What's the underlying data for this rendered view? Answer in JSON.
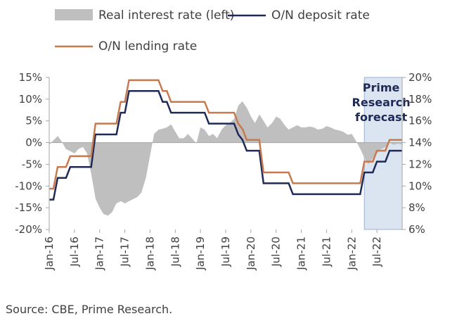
{
  "chart_data": {
    "type": "line",
    "legend": {
      "real_rate": "Real interest rate (left)",
      "deposit": "O/N deposit rate",
      "lending": "O/N lending rate"
    },
    "colors": {
      "real_rate": "#bfbfbf",
      "deposit": "#1f2a56",
      "lending": "#c87a4f",
      "forecast_band": "#dbe4f1",
      "forecast_edge": "#9db1d3",
      "axis": "#a6a6a6"
    },
    "y_left": {
      "min": -20,
      "max": 15,
      "ticks": [
        15,
        10,
        5,
        0,
        -5,
        -10,
        -15,
        -20
      ],
      "format": "percent"
    },
    "y_right": {
      "min": 6,
      "max": 20,
      "ticks": [
        20,
        18,
        16,
        14,
        12,
        10,
        8,
        6
      ],
      "format": "percent"
    },
    "x_range": [
      2016.0,
      2023.0
    ],
    "x_ticks": [
      {
        "label": "Jan-16",
        "t": 2016.0
      },
      {
        "label": "Jul-16",
        "t": 2016.5
      },
      {
        "label": "Jan-17",
        "t": 2017.0
      },
      {
        "label": "Jul-17",
        "t": 2017.5
      },
      {
        "label": "Jan-18",
        "t": 2018.0
      },
      {
        "label": "Jul-18",
        "t": 2018.5
      },
      {
        "label": "Jan-19",
        "t": 2019.0
      },
      {
        "label": "Jul-19",
        "t": 2019.5
      },
      {
        "label": "Jan-20",
        "t": 2020.0
      },
      {
        "label": "Jul-20",
        "t": 2020.5
      },
      {
        "label": "Jan-21",
        "t": 2021.0
      },
      {
        "label": "Jul-21",
        "t": 2021.5
      },
      {
        "label": "Jan-22",
        "t": 2022.0
      },
      {
        "label": "Jul-22",
        "t": 2022.5
      }
    ],
    "forecast": {
      "label_lines": [
        "Prime",
        "Research",
        "forecast"
      ],
      "start": 2022.25,
      "end": 2023.0
    },
    "series": [
      {
        "name": "O/N deposit rate",
        "axis": "right",
        "style": "step",
        "points": [
          [
            2016.0,
            8.75
          ],
          [
            2016.083,
            8.75
          ],
          [
            2016.167,
            10.75
          ],
          [
            2016.333,
            10.75
          ],
          [
            2016.417,
            11.75
          ],
          [
            2016.833,
            11.75
          ],
          [
            2016.917,
            14.75
          ],
          [
            2017.333,
            14.75
          ],
          [
            2017.417,
            16.75
          ],
          [
            2017.5,
            16.75
          ],
          [
            2017.583,
            18.75
          ],
          [
            2018.167,
            18.75
          ],
          [
            2018.25,
            17.75
          ],
          [
            2018.333,
            17.75
          ],
          [
            2018.417,
            16.75
          ],
          [
            2019.083,
            16.75
          ],
          [
            2019.167,
            15.75
          ],
          [
            2019.667,
            15.75
          ],
          [
            2019.75,
            14.75
          ],
          [
            2019.833,
            14.25
          ],
          [
            2019.917,
            13.25
          ],
          [
            2020.167,
            13.25
          ],
          [
            2020.25,
            10.25
          ],
          [
            2020.75,
            10.25
          ],
          [
            2020.833,
            9.25
          ],
          [
            2022.167,
            9.25
          ],
          [
            2022.25,
            11.25
          ],
          [
            2022.417,
            11.25
          ],
          [
            2022.5,
            12.25
          ],
          [
            2022.667,
            12.25
          ],
          [
            2022.75,
            13.25
          ],
          [
            2023.0,
            13.25
          ]
        ]
      },
      {
        "name": "O/N lending rate",
        "axis": "right",
        "style": "step",
        "points": [
          [
            2016.0,
            9.75
          ],
          [
            2016.083,
            9.75
          ],
          [
            2016.167,
            11.75
          ],
          [
            2016.333,
            11.75
          ],
          [
            2016.417,
            12.75
          ],
          [
            2016.833,
            12.75
          ],
          [
            2016.917,
            15.75
          ],
          [
            2017.333,
            15.75
          ],
          [
            2017.417,
            17.75
          ],
          [
            2017.5,
            17.75
          ],
          [
            2017.583,
            19.75
          ],
          [
            2018.167,
            19.75
          ],
          [
            2018.25,
            18.75
          ],
          [
            2018.333,
            18.75
          ],
          [
            2018.417,
            17.75
          ],
          [
            2019.083,
            17.75
          ],
          [
            2019.167,
            16.75
          ],
          [
            2019.667,
            16.75
          ],
          [
            2019.75,
            15.75
          ],
          [
            2019.833,
            15.25
          ],
          [
            2019.917,
            14.25
          ],
          [
            2020.167,
            14.25
          ],
          [
            2020.25,
            11.25
          ],
          [
            2020.75,
            11.25
          ],
          [
            2020.833,
            10.25
          ],
          [
            2022.167,
            10.25
          ],
          [
            2022.25,
            12.25
          ],
          [
            2022.417,
            12.25
          ],
          [
            2022.5,
            13.25
          ],
          [
            2022.667,
            13.25
          ],
          [
            2022.75,
            14.25
          ],
          [
            2023.0,
            14.25
          ]
        ]
      },
      {
        "name": "Real interest rate (left)",
        "axis": "left",
        "style": "area",
        "points": [
          [
            2016.0,
            -0.5
          ],
          [
            2016.08,
            0.5
          ],
          [
            2016.17,
            1.5
          ],
          [
            2016.25,
            0.2
          ],
          [
            2016.33,
            -1.5
          ],
          [
            2016.42,
            -2.0
          ],
          [
            2016.5,
            -2.5
          ],
          [
            2016.58,
            -1.5
          ],
          [
            2016.67,
            -1.0
          ],
          [
            2016.75,
            -2.5
          ],
          [
            2016.83,
            -7.0
          ],
          [
            2016.92,
            -13.0
          ],
          [
            2017.0,
            -15.0
          ],
          [
            2017.08,
            -16.5
          ],
          [
            2017.17,
            -16.8
          ],
          [
            2017.25,
            -16.0
          ],
          [
            2017.33,
            -14.0
          ],
          [
            2017.42,
            -13.5
          ],
          [
            2017.5,
            -14.0
          ],
          [
            2017.58,
            -13.5
          ],
          [
            2017.67,
            -13.0
          ],
          [
            2017.75,
            -12.5
          ],
          [
            2017.83,
            -11.5
          ],
          [
            2017.92,
            -8.0
          ],
          [
            2018.0,
            -3.0
          ],
          [
            2018.08,
            2.0
          ],
          [
            2018.17,
            3.0
          ],
          [
            2018.25,
            3.2
          ],
          [
            2018.33,
            3.5
          ],
          [
            2018.42,
            4.2
          ],
          [
            2018.5,
            2.5
          ],
          [
            2018.58,
            1.0
          ],
          [
            2018.67,
            1.0
          ],
          [
            2018.75,
            2.0
          ],
          [
            2018.83,
            1.0
          ],
          [
            2018.92,
            -0.2
          ],
          [
            2019.0,
            3.5
          ],
          [
            2019.08,
            3.0
          ],
          [
            2019.17,
            1.5
          ],
          [
            2019.25,
            2.0
          ],
          [
            2019.33,
            1.0
          ],
          [
            2019.42,
            3.0
          ],
          [
            2019.5,
            4.0
          ],
          [
            2019.58,
            4.5
          ],
          [
            2019.67,
            5.5
          ],
          [
            2019.75,
            8.5
          ],
          [
            2019.83,
            9.5
          ],
          [
            2019.92,
            8.0
          ],
          [
            2020.0,
            6.0
          ],
          [
            2020.08,
            4.5
          ],
          [
            2020.17,
            6.5
          ],
          [
            2020.25,
            5.0
          ],
          [
            2020.33,
            3.5
          ],
          [
            2020.42,
            4.5
          ],
          [
            2020.5,
            6.0
          ],
          [
            2020.58,
            5.5
          ],
          [
            2020.67,
            4.0
          ],
          [
            2020.75,
            3.0
          ],
          [
            2020.83,
            3.5
          ],
          [
            2020.92,
            4.0
          ],
          [
            2021.0,
            3.5
          ],
          [
            2021.08,
            3.5
          ],
          [
            2021.17,
            3.7
          ],
          [
            2021.25,
            3.5
          ],
          [
            2021.33,
            3.0
          ],
          [
            2021.42,
            3.2
          ],
          [
            2021.5,
            3.8
          ],
          [
            2021.58,
            3.5
          ],
          [
            2021.67,
            3.0
          ],
          [
            2021.75,
            2.8
          ],
          [
            2021.83,
            2.5
          ],
          [
            2021.92,
            1.8
          ],
          [
            2022.0,
            2.0
          ],
          [
            2022.08,
            0.5
          ],
          [
            2022.17,
            -1.5
          ],
          [
            2022.25,
            -3.5
          ],
          [
            2022.33,
            -5.0
          ],
          [
            2022.42,
            -3.5
          ],
          [
            2022.5,
            -2.5
          ],
          [
            2022.58,
            -1.5
          ],
          [
            2022.67,
            -1.0
          ],
          [
            2022.75,
            0.0
          ],
          [
            2022.83,
            -0.5
          ],
          [
            2022.92,
            -0.2
          ],
          [
            2023.0,
            -0.5
          ]
        ]
      }
    ]
  },
  "source": "Source: CBE, Prime Research."
}
